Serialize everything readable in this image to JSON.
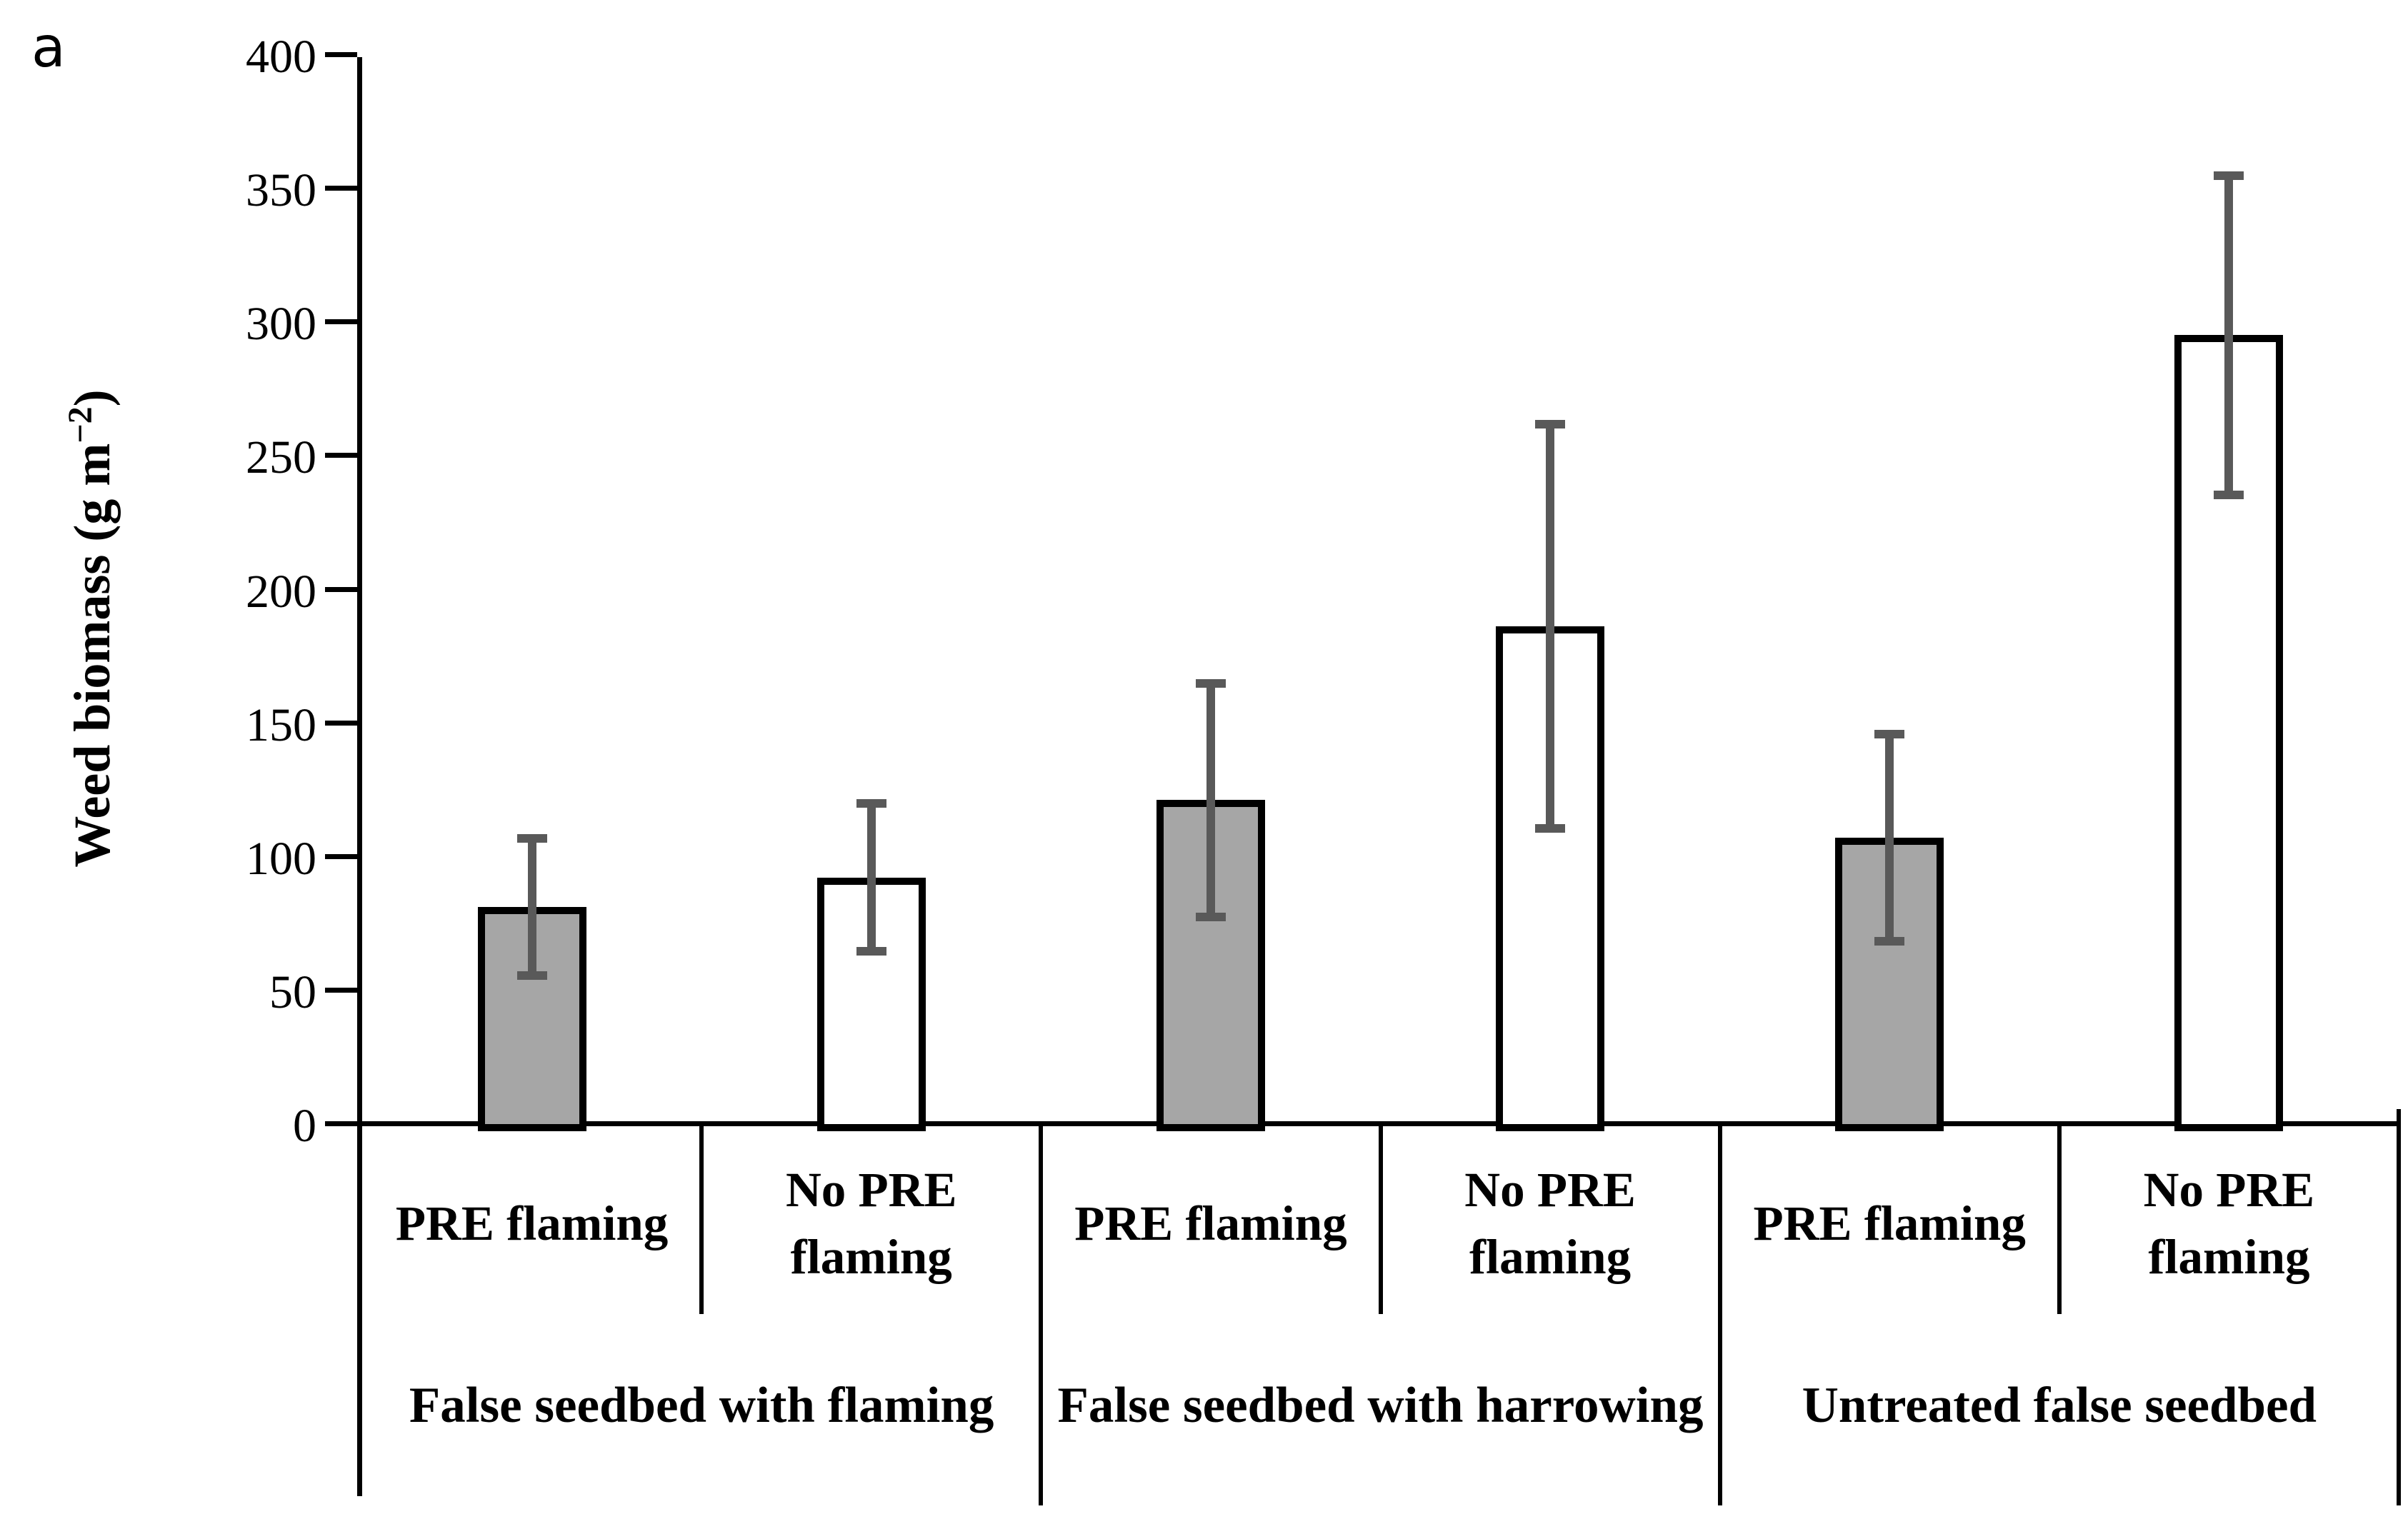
{
  "panel_label": "a",
  "y_axis": {
    "title_prefix": "Weed biomass (g m",
    "title_sup": "−2",
    "title_suffix": ")",
    "tick_labels": [
      "0",
      "50",
      "100",
      "150",
      "200",
      "250",
      "300",
      "350",
      "400"
    ]
  },
  "chart_data": {
    "type": "bar",
    "title": "",
    "xlabel": "",
    "ylabel": "Weed biomass (g m−2)",
    "ylim": [
      0,
      400
    ],
    "ytick_step": 50,
    "grid": false,
    "legend_position": "none",
    "categories": [
      "False seedbed with flaming",
      "False seedbed with harrowing",
      "Untreated false seedbed"
    ],
    "series_labels": [
      "PRE flaming",
      "No PRE flaming"
    ],
    "groups": [
      {
        "label": "False seedbed with flaming",
        "bars": [
          {
            "label": "PRE flaming",
            "value": 82,
            "err_low": 55,
            "err_high": 109,
            "fill": "gray"
          },
          {
            "label": "No PRE flaming",
            "value": 93,
            "err_low": 64,
            "err_high": 122,
            "fill": "white"
          }
        ]
      },
      {
        "label": "False seedbed with harrowing",
        "bars": [
          {
            "label": "PRE flaming",
            "value": 122,
            "err_low": 77,
            "err_high": 167,
            "fill": "gray"
          },
          {
            "label": "No PRE flaming",
            "value": 187,
            "err_low": 110,
            "err_high": 264,
            "fill": "white"
          }
        ]
      },
      {
        "label": "Untreated false seedbed",
        "bars": [
          {
            "label": "PRE flaming",
            "value": 108,
            "err_low": 68,
            "err_high": 148,
            "fill": "gray"
          },
          {
            "label": "No PRE flaming",
            "value": 296,
            "err_low": 235,
            "err_high": 357,
            "fill": "white"
          }
        ]
      }
    ],
    "colors": {
      "gray_fill": "#a6a6a6",
      "white_fill": "#ffffff",
      "bar_border": "#000000",
      "error_bar": "#595959",
      "axis": "#000000"
    }
  }
}
